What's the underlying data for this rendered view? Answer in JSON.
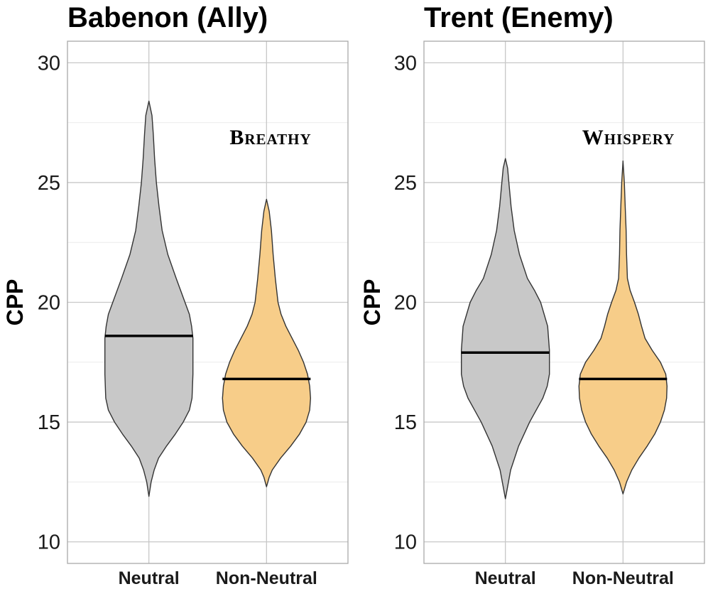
{
  "chart_data": [
    {
      "type": "violin",
      "title": "Babenon (Ally)",
      "ylabel": "CPP",
      "ylim": [
        9.1,
        30.9
      ],
      "yticks": [
        10,
        15,
        20,
        25,
        30
      ],
      "annotation": "Breathy",
      "categories": [
        "Neutral",
        "Non-Neutral"
      ],
      "series": [
        {
          "category": "Neutral",
          "color": "#c8c8c8",
          "mean": 18.6,
          "min": 11.9,
          "max": 28.4,
          "density": [
            [
              11.9,
              0
            ],
            [
              12.5,
              0.05
            ],
            [
              13,
              0.12
            ],
            [
              13.5,
              0.22
            ],
            [
              14,
              0.4
            ],
            [
              14.5,
              0.6
            ],
            [
              15,
              0.78
            ],
            [
              15.5,
              0.92
            ],
            [
              16,
              0.98
            ],
            [
              17,
              1
            ],
            [
              18,
              1
            ],
            [
              18.5,
              1
            ],
            [
              19,
              0.97
            ],
            [
              19.5,
              0.92
            ],
            [
              20,
              0.82
            ],
            [
              21,
              0.62
            ],
            [
              22,
              0.43
            ],
            [
              23,
              0.3
            ],
            [
              24,
              0.23
            ],
            [
              25,
              0.17
            ],
            [
              26,
              0.13
            ],
            [
              27,
              0.1
            ],
            [
              27.8,
              0.07
            ],
            [
              28.4,
              0
            ]
          ]
        },
        {
          "category": "Non-Neutral",
          "color": "#f7cd89",
          "mean": 16.8,
          "min": 12.3,
          "max": 24.3,
          "density": [
            [
              12.3,
              0
            ],
            [
              12.7,
              0.06
            ],
            [
              13,
              0.13
            ],
            [
              13.5,
              0.32
            ],
            [
              14,
              0.55
            ],
            [
              14.5,
              0.75
            ],
            [
              15,
              0.9
            ],
            [
              15.5,
              0.98
            ],
            [
              16,
              1
            ],
            [
              16.5,
              0.98
            ],
            [
              17,
              0.93
            ],
            [
              17.5,
              0.84
            ],
            [
              18,
              0.72
            ],
            [
              18.5,
              0.58
            ],
            [
              19,
              0.44
            ],
            [
              19.5,
              0.33
            ],
            [
              20,
              0.26
            ],
            [
              21,
              0.2
            ],
            [
              22,
              0.15
            ],
            [
              23,
              0.11
            ],
            [
              23.8,
              0.06
            ],
            [
              24.3,
              0
            ]
          ]
        }
      ]
    },
    {
      "type": "violin",
      "title": "Trent (Enemy)",
      "ylabel": "CPP",
      "ylim": [
        9.1,
        30.9
      ],
      "yticks": [
        10,
        15,
        20,
        25,
        30
      ],
      "annotation": "Whispery",
      "categories": [
        "Neutral",
        "Non-Neutral"
      ],
      "series": [
        {
          "category": "Neutral",
          "color": "#c8c8c8",
          "mean": 17.9,
          "min": 11.8,
          "max": 26.0,
          "density": [
            [
              11.8,
              0
            ],
            [
              12.3,
              0.05
            ],
            [
              13,
              0.12
            ],
            [
              14,
              0.3
            ],
            [
              15,
              0.55
            ],
            [
              15.5,
              0.7
            ],
            [
              16,
              0.85
            ],
            [
              16.5,
              0.95
            ],
            [
              17,
              1
            ],
            [
              18,
              1
            ],
            [
              19,
              0.96
            ],
            [
              20,
              0.8
            ],
            [
              20.5,
              0.66
            ],
            [
              21,
              0.5
            ],
            [
              22,
              0.32
            ],
            [
              23,
              0.2
            ],
            [
              24,
              0.13
            ],
            [
              25,
              0.08
            ],
            [
              25.6,
              0.05
            ],
            [
              26,
              0
            ]
          ]
        },
        {
          "category": "Non-Neutral",
          "color": "#f7cd89",
          "mean": 16.8,
          "min": 12.0,
          "max": 25.9,
          "density": [
            [
              12,
              0
            ],
            [
              12.5,
              0.08
            ],
            [
              13,
              0.2
            ],
            [
              13.5,
              0.36
            ],
            [
              14,
              0.55
            ],
            [
              14.5,
              0.72
            ],
            [
              15,
              0.85
            ],
            [
              15.5,
              0.94
            ],
            [
              16,
              0.99
            ],
            [
              16.5,
              1
            ],
            [
              17,
              0.97
            ],
            [
              17.5,
              0.85
            ],
            [
              18,
              0.66
            ],
            [
              18.5,
              0.5
            ],
            [
              19,
              0.42
            ],
            [
              19.5,
              0.35
            ],
            [
              20,
              0.26
            ],
            [
              20.5,
              0.16
            ],
            [
              21,
              0.1
            ],
            [
              22,
              0.08
            ],
            [
              23,
              0.07
            ],
            [
              24,
              0.05
            ],
            [
              25,
              0.03
            ],
            [
              25.9,
              0
            ]
          ]
        }
      ]
    }
  ]
}
